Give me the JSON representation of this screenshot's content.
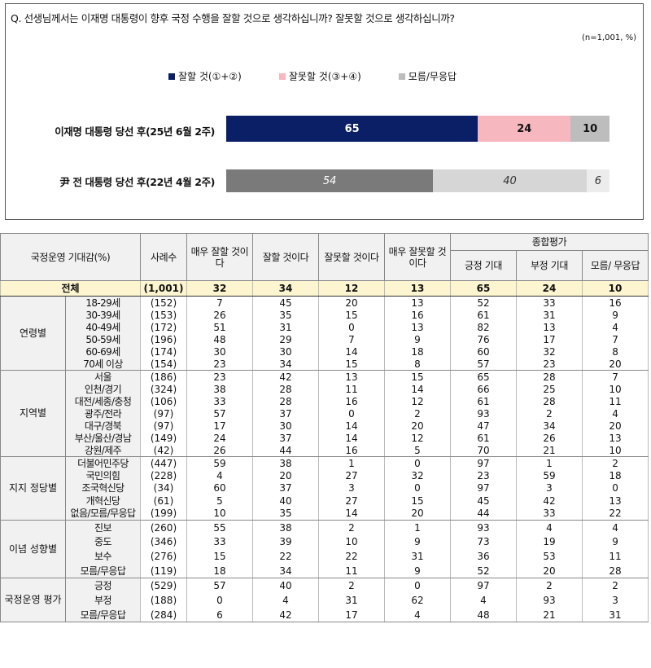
{
  "question": "Q. 선생님께서는 이재명 대통령이 향후 국정 수행을 잘할 것으로 생각하십니까? 잘못할 것으로 생각하십니까?",
  "note": "(n=1,001, %)",
  "colors": {
    "good": "#0a1f66",
    "bad": "#f7b7be",
    "dk": "#bdbdbd",
    "good_past": "#7a7a7a",
    "bad_past": "#d6d6d6",
    "dk_past": "#ececec"
  },
  "chart_data": {
    "type": "bar",
    "orientation": "horizontal-stacked",
    "title": "Q. 선생님께서는 이재명 대통령이 향후 국정 수행을 잘할 것으로 생각하십니까? 잘못할 것으로 생각하십니까?",
    "categories": [
      "이재명 대통령 당선 후(25년 6월 2주)",
      "尹 전 대통령 당선 후(22년 4월 2주)"
    ],
    "series": [
      {
        "name": "잘할 것(①+②)",
        "values": [
          65,
          54
        ]
      },
      {
        "name": "잘못할 것(③+④)",
        "values": [
          24,
          40
        ]
      },
      {
        "name": "모름/무응답",
        "values": [
          10,
          6
        ]
      }
    ],
    "xlim": [
      0,
      100
    ],
    "legend": "top-center"
  },
  "table": {
    "header": {
      "category": "국정운영 기대감(%)",
      "n": "사례수",
      "col1": "매우 잘할 것이다",
      "col2": "잘할 것이다",
      "col3": "잘못할 것이다",
      "col4": "매우 잘못할 것이다",
      "summary": "종합평가",
      "col5": "긍정 기대",
      "col6": "부정 기대",
      "col7": "모름/ 무응답"
    },
    "total": {
      "label": "전체",
      "n": "(1,001)",
      "values": [
        "32",
        "34",
        "12",
        "13",
        "65",
        "24",
        "10"
      ]
    },
    "groups": [
      {
        "name": "연령별",
        "rows": [
          {
            "label": "18-29세",
            "n": "(152)",
            "values": [
              "7",
              "45",
              "20",
              "13",
              "52",
              "33",
              "16"
            ]
          },
          {
            "label": "30-39세",
            "n": "(153)",
            "values": [
              "26",
              "35",
              "15",
              "16",
              "61",
              "31",
              "9"
            ]
          },
          {
            "label": "40-49세",
            "n": "(172)",
            "values": [
              "51",
              "31",
              "0",
              "13",
              "82",
              "13",
              "4"
            ]
          },
          {
            "label": "50-59세",
            "n": "(196)",
            "values": [
              "48",
              "29",
              "7",
              "9",
              "76",
              "17",
              "7"
            ]
          },
          {
            "label": "60-69세",
            "n": "(174)",
            "values": [
              "30",
              "30",
              "14",
              "18",
              "60",
              "32",
              "8"
            ]
          },
          {
            "label": "70세 이상",
            "n": "(154)",
            "values": [
              "23",
              "34",
              "15",
              "8",
              "57",
              "23",
              "20"
            ]
          }
        ]
      },
      {
        "name": "지역별",
        "rows": [
          {
            "label": "서울",
            "n": "(186)",
            "values": [
              "23",
              "42",
              "13",
              "15",
              "65",
              "28",
              "7"
            ]
          },
          {
            "label": "인천/경기",
            "n": "(324)",
            "values": [
              "38",
              "28",
              "11",
              "14",
              "66",
              "25",
              "10"
            ]
          },
          {
            "label": "대전/세종/충청",
            "n": "(106)",
            "values": [
              "33",
              "28",
              "16",
              "12",
              "61",
              "28",
              "11"
            ]
          },
          {
            "label": "광주/전라",
            "n": "(97)",
            "values": [
              "57",
              "37",
              "0",
              "2",
              "93",
              "2",
              "4"
            ]
          },
          {
            "label": "대구/경북",
            "n": "(97)",
            "values": [
              "17",
              "30",
              "14",
              "20",
              "47",
              "34",
              "20"
            ]
          },
          {
            "label": "부산/울산/경남",
            "n": "(149)",
            "values": [
              "24",
              "37",
              "14",
              "12",
              "61",
              "26",
              "13"
            ]
          },
          {
            "label": "강원/제주",
            "n": "(42)",
            "values": [
              "26",
              "44",
              "16",
              "5",
              "70",
              "21",
              "10"
            ]
          }
        ]
      },
      {
        "name": "지지 정당별",
        "rows": [
          {
            "label": "더불어민주당",
            "n": "(447)",
            "values": [
              "59",
              "38",
              "1",
              "0",
              "97",
              "1",
              "2"
            ]
          },
          {
            "label": "국민의힘",
            "n": "(228)",
            "values": [
              "4",
              "20",
              "27",
              "32",
              "23",
              "59",
              "18"
            ]
          },
          {
            "label": "조국혁신당",
            "n": "(34)",
            "values": [
              "60",
              "37",
              "3",
              "0",
              "97",
              "3",
              "0"
            ]
          },
          {
            "label": "개혁신당",
            "n": "(61)",
            "values": [
              "5",
              "40",
              "27",
              "15",
              "45",
              "42",
              "13"
            ]
          },
          {
            "label": "없음/모름/무응답",
            "n": "(199)",
            "values": [
              "10",
              "35",
              "14",
              "20",
              "44",
              "33",
              "22"
            ]
          }
        ]
      },
      {
        "name": "이념 성향별",
        "rows": [
          {
            "label": "진보",
            "n": "(260)",
            "values": [
              "55",
              "38",
              "2",
              "1",
              "93",
              "4",
              "4"
            ]
          },
          {
            "label": "중도",
            "n": "(346)",
            "values": [
              "33",
              "39",
              "10",
              "9",
              "73",
              "19",
              "9"
            ]
          },
          {
            "label": "보수",
            "n": "(276)",
            "values": [
              "15",
              "22",
              "22",
              "31",
              "36",
              "53",
              "11"
            ]
          },
          {
            "label": "모름/무응답",
            "n": "(119)",
            "values": [
              "18",
              "34",
              "11",
              "9",
              "52",
              "20",
              "28"
            ]
          }
        ]
      },
      {
        "name": "국정운영 평가",
        "rows": [
          {
            "label": "긍정",
            "n": "(529)",
            "values": [
              "57",
              "40",
              "2",
              "0",
              "97",
              "2",
              "2"
            ]
          },
          {
            "label": "부정",
            "n": "(188)",
            "values": [
              "0",
              "4",
              "31",
              "62",
              "4",
              "93",
              "3"
            ]
          },
          {
            "label": "모름/무응답",
            "n": "(284)",
            "values": [
              "6",
              "42",
              "17",
              "4",
              "48",
              "21",
              "31"
            ]
          }
        ]
      }
    ]
  }
}
